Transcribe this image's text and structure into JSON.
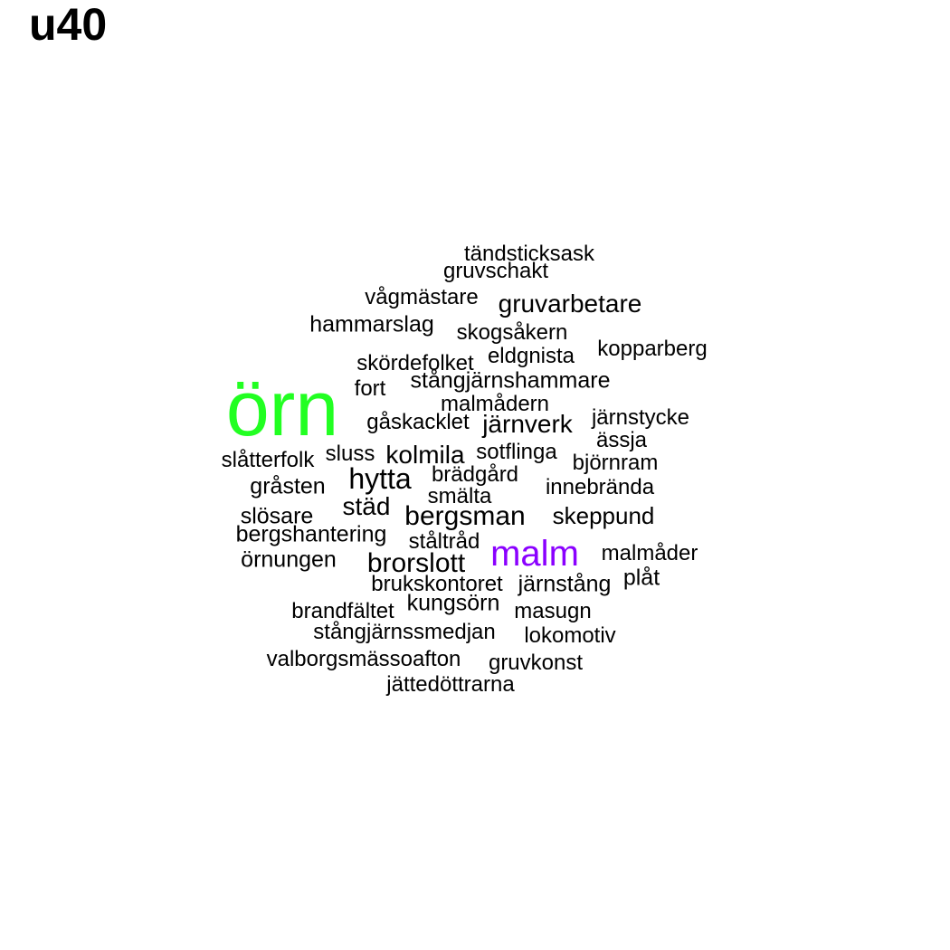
{
  "title": "u40",
  "colors": {
    "default": "#000000",
    "highlight_green": "#22ff22",
    "highlight_purple": "#8a00ff"
  },
  "words": [
    {
      "text": "örn",
      "weight": 5,
      "color": "highlight_green"
    },
    {
      "text": "malm",
      "weight": 3,
      "color": "highlight_purple"
    },
    {
      "text": "tändsticksask",
      "weight": 1
    },
    {
      "text": "gruvschakt",
      "weight": 1
    },
    {
      "text": "vågmästare",
      "weight": 1
    },
    {
      "text": "gruvarbetare",
      "weight": 1.4
    },
    {
      "text": "hammarslag",
      "weight": 1.2
    },
    {
      "text": "skogsåkern",
      "weight": 1
    },
    {
      "text": "kopparberg",
      "weight": 1
    },
    {
      "text": "eldgnista",
      "weight": 1
    },
    {
      "text": "skördefolket",
      "weight": 1
    },
    {
      "text": "stångjärnshammare",
      "weight": 1.1
    },
    {
      "text": "fort",
      "weight": 1
    },
    {
      "text": "malmådern",
      "weight": 1
    },
    {
      "text": "järnstycke",
      "weight": 1
    },
    {
      "text": "gåskacklet",
      "weight": 1
    },
    {
      "text": "järnverk",
      "weight": 1.4
    },
    {
      "text": "ässja",
      "weight": 1
    },
    {
      "text": "slåtterfolk",
      "weight": 1
    },
    {
      "text": "sluss",
      "weight": 1
    },
    {
      "text": "kolmila",
      "weight": 1.4
    },
    {
      "text": "sotflinga",
      "weight": 1
    },
    {
      "text": "björnram",
      "weight": 1
    },
    {
      "text": "hytta",
      "weight": 1.6
    },
    {
      "text": "brädgård",
      "weight": 1
    },
    {
      "text": "gråsten",
      "weight": 1.1
    },
    {
      "text": "innebrända",
      "weight": 1
    },
    {
      "text": "smälta",
      "weight": 1
    },
    {
      "text": "städ",
      "weight": 1.4
    },
    {
      "text": "slösare",
      "weight": 1.1
    },
    {
      "text": "bergsman",
      "weight": 1.5
    },
    {
      "text": "skeppund",
      "weight": 1.2
    },
    {
      "text": "bergshantering",
      "weight": 1.1
    },
    {
      "text": "ståltråd",
      "weight": 1
    },
    {
      "text": "örnungen",
      "weight": 1.1
    },
    {
      "text": "brorslott",
      "weight": 1.5
    },
    {
      "text": "malmåder",
      "weight": 1
    },
    {
      "text": "plåt",
      "weight": 1.1
    },
    {
      "text": "brukskontoret",
      "weight": 1
    },
    {
      "text": "järnstång",
      "weight": 1.1
    },
    {
      "text": "kungsörn",
      "weight": 1.1
    },
    {
      "text": "brandfältet",
      "weight": 1
    },
    {
      "text": "masugn",
      "weight": 1
    },
    {
      "text": "stångjärnssmedjan",
      "weight": 1
    },
    {
      "text": "lokomotiv",
      "weight": 1
    },
    {
      "text": "valborgsmässoafton",
      "weight": 1
    },
    {
      "text": "gruvkonst",
      "weight": 1
    },
    {
      "text": "jättedöttrarna",
      "weight": 1
    }
  ]
}
